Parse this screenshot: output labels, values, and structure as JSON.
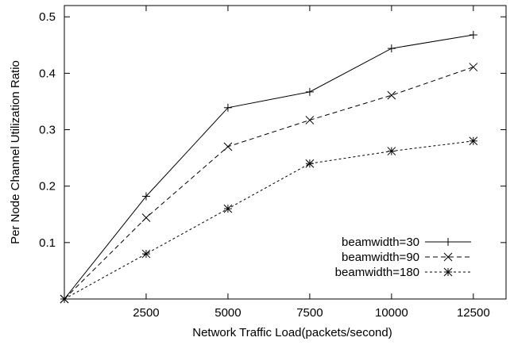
{
  "chart_data": {
    "type": "line",
    "title": "",
    "xlabel": "Network Traffic Load(packets/second)",
    "ylabel": "Per Node Channel Utilization Ratio",
    "x": [
      0,
      2500,
      5000,
      7500,
      10000,
      12500
    ],
    "xlim": [
      0,
      13500
    ],
    "ylim": [
      0,
      0.52
    ],
    "xticks": [
      2500,
      5000,
      7500,
      10000,
      12500
    ],
    "xtick_labels": [
      "2500",
      "5000",
      "7500",
      "10000",
      "12500"
    ],
    "yticks": [
      0.1,
      0.2,
      0.3,
      0.4,
      0.5
    ],
    "ytick_labels": [
      "0.1",
      "0.2",
      "0.3",
      "0.4",
      "0.5"
    ],
    "grid": false,
    "legend_position": "bottom-right",
    "series": [
      {
        "name": "beamwidth=30",
        "values": [
          0,
          0.182,
          0.339,
          0.367,
          0.444,
          0.468
        ],
        "marker": "plus",
        "dash": "solid"
      },
      {
        "name": "beamwidth=90",
        "values": [
          0,
          0.144,
          0.27,
          0.317,
          0.361,
          0.411
        ],
        "marker": "cross",
        "dash": "dashed"
      },
      {
        "name": "beamwidth=180",
        "values": [
          0,
          0.08,
          0.16,
          0.24,
          0.262,
          0.28
        ],
        "marker": "star",
        "dash": "dotted"
      }
    ]
  }
}
